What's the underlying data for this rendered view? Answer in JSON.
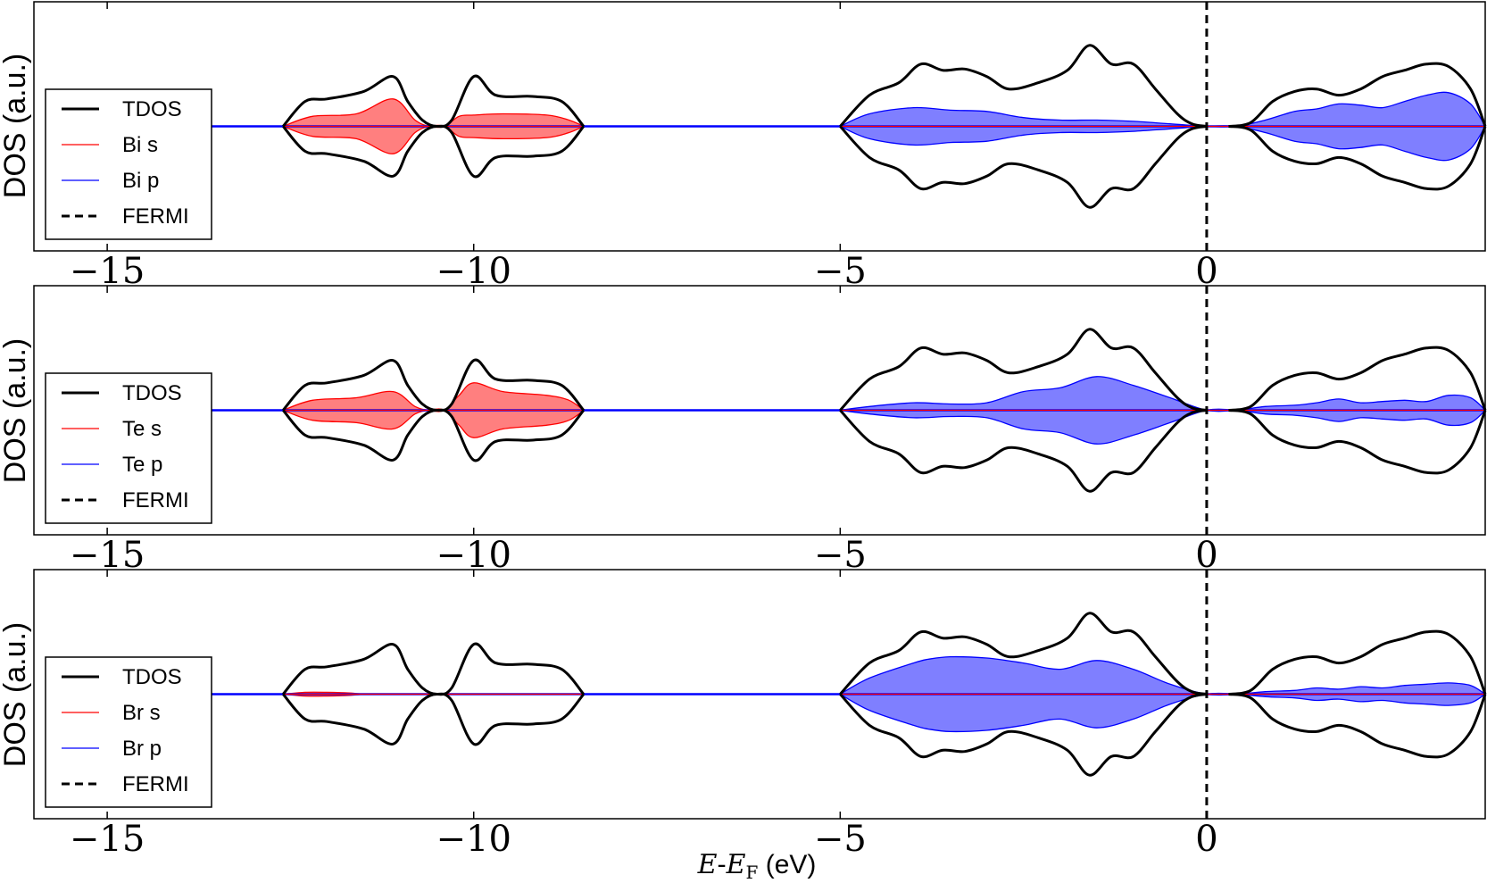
{
  "chart_data": [
    {
      "type": "area",
      "ylabel": "DOS (a.u.)",
      "xlim": [
        -16,
        3.8
      ],
      "ylim": [
        -1.0,
        1.0
      ],
      "xticks": [
        -15,
        -10,
        -5,
        0
      ],
      "xtick_labels": [
        "−15",
        "−10",
        "−5",
        "0"
      ],
      "fermi_level": 0,
      "legend": {
        "placement": "lower-left",
        "entries": [
          "TDOS",
          "Bi s",
          "Bi p",
          "FERMI"
        ]
      },
      "series": [
        {
          "name": "TDOS",
          "style": "line",
          "color": "#000000",
          "x": [
            -12.6,
            -12.3,
            -12.0,
            -11.5,
            -11.1,
            -10.9,
            -10.7,
            -10.5,
            -10.3,
            -10.0,
            -9.7,
            -9.2,
            -8.8,
            -8.5,
            -5.0,
            -4.6,
            -4.2,
            -3.9,
            -3.6,
            -3.3,
            -3.0,
            -2.7,
            -2.3,
            -1.9,
            -1.6,
            -1.3,
            -1.0,
            -0.7,
            -0.4,
            -0.2,
            0.0,
            0.3,
            0.6,
            0.9,
            1.2,
            1.5,
            1.8,
            2.1,
            2.4,
            2.7,
            3.0,
            3.3,
            3.6,
            3.8
          ],
          "y": [
            0.0,
            0.2,
            0.22,
            0.28,
            0.4,
            0.2,
            0.05,
            0.0,
            0.05,
            0.4,
            0.25,
            0.24,
            0.2,
            0.0,
            0.0,
            0.25,
            0.35,
            0.5,
            0.45,
            0.46,
            0.4,
            0.3,
            0.35,
            0.45,
            0.65,
            0.5,
            0.5,
            0.3,
            0.1,
            0.02,
            0.0,
            0.0,
            0.03,
            0.2,
            0.28,
            0.3,
            0.25,
            0.3,
            0.4,
            0.45,
            0.5,
            0.48,
            0.3,
            0.0
          ]
        },
        {
          "name": "Bi s",
          "style": "fill",
          "color": "#ff0000",
          "x": [
            -12.6,
            -12.2,
            -11.6,
            -11.1,
            -10.8,
            -10.6,
            -10.4,
            -10.2,
            -10.0,
            -9.6,
            -9.0,
            -8.7,
            -8.5
          ],
          "y": [
            0.0,
            0.08,
            0.1,
            0.22,
            0.05,
            0.0,
            0.0,
            0.08,
            0.09,
            0.1,
            0.09,
            0.05,
            0.0
          ]
        },
        {
          "name": "Bi p",
          "style": "fill",
          "color": "#0000ff",
          "x": [
            -5.0,
            -4.6,
            -4.0,
            -3.5,
            -3.0,
            -2.5,
            -2.0,
            -1.5,
            -1.0,
            -0.5,
            0.0,
            0.4,
            0.8,
            1.2,
            1.5,
            1.8,
            2.1,
            2.4,
            2.7,
            3.0,
            3.3,
            3.6,
            3.8
          ],
          "y": [
            0.0,
            0.1,
            0.15,
            0.13,
            0.12,
            0.07,
            0.05,
            0.05,
            0.04,
            0.02,
            0.0,
            0.0,
            0.05,
            0.12,
            0.14,
            0.18,
            0.17,
            0.15,
            0.2,
            0.25,
            0.27,
            0.18,
            0.0
          ]
        }
      ]
    },
    {
      "type": "area",
      "ylabel": "DOS (a.u.)",
      "xlim": [
        -16,
        3.8
      ],
      "ylim": [
        -1.0,
        1.0
      ],
      "xticks": [
        -15,
        -10,
        -5,
        0
      ],
      "xtick_labels": [
        "−15",
        "−10",
        "−5",
        "0"
      ],
      "fermi_level": 0,
      "legend": {
        "placement": "lower-left",
        "entries": [
          "TDOS",
          "Te s",
          "Te p",
          "FERMI"
        ]
      },
      "series": [
        {
          "name": "TDOS",
          "style": "line",
          "color": "#000000",
          "x": [
            -12.6,
            -12.3,
            -12.0,
            -11.5,
            -11.1,
            -10.9,
            -10.7,
            -10.5,
            -10.3,
            -10.0,
            -9.7,
            -9.2,
            -8.8,
            -8.5,
            -5.0,
            -4.6,
            -4.2,
            -3.9,
            -3.6,
            -3.3,
            -3.0,
            -2.7,
            -2.3,
            -1.9,
            -1.6,
            -1.3,
            -1.0,
            -0.7,
            -0.4,
            -0.2,
            0.0,
            0.3,
            0.6,
            0.9,
            1.2,
            1.5,
            1.8,
            2.1,
            2.4,
            2.7,
            3.0,
            3.3,
            3.6,
            3.8
          ],
          "y": [
            0.0,
            0.2,
            0.22,
            0.28,
            0.4,
            0.2,
            0.05,
            0.0,
            0.05,
            0.4,
            0.25,
            0.24,
            0.2,
            0.0,
            0.0,
            0.25,
            0.35,
            0.5,
            0.45,
            0.46,
            0.4,
            0.3,
            0.35,
            0.45,
            0.65,
            0.5,
            0.5,
            0.3,
            0.1,
            0.02,
            0.0,
            0.0,
            0.03,
            0.2,
            0.28,
            0.3,
            0.25,
            0.3,
            0.4,
            0.45,
            0.5,
            0.48,
            0.3,
            0.0
          ]
        },
        {
          "name": "Te s",
          "style": "fill",
          "color": "#ff0000",
          "x": [
            -12.6,
            -12.2,
            -11.6,
            -11.1,
            -10.8,
            -10.6,
            -10.4,
            -10.2,
            -10.0,
            -9.6,
            -9.0,
            -8.7,
            -8.5
          ],
          "y": [
            0.0,
            0.08,
            0.1,
            0.15,
            0.03,
            0.0,
            0.0,
            0.12,
            0.22,
            0.15,
            0.12,
            0.08,
            0.0
          ]
        },
        {
          "name": "Te p",
          "style": "fill",
          "color": "#0000ff",
          "x": [
            -5.0,
            -4.6,
            -4.0,
            -3.5,
            -3.0,
            -2.5,
            -2.0,
            -1.5,
            -1.0,
            -0.5,
            0.0,
            0.4,
            0.8,
            1.2,
            1.5,
            1.8,
            2.1,
            2.4,
            2.7,
            3.0,
            3.3,
            3.6,
            3.8
          ],
          "y": [
            0.0,
            0.03,
            0.06,
            0.05,
            0.06,
            0.15,
            0.18,
            0.27,
            0.2,
            0.1,
            0.0,
            0.0,
            0.03,
            0.04,
            0.06,
            0.09,
            0.06,
            0.07,
            0.08,
            0.07,
            0.12,
            0.1,
            0.0
          ]
        }
      ]
    },
    {
      "type": "area",
      "ylabel": "DOS (a.u.)",
      "xlabel": "E-E_F (eV)",
      "xlim": [
        -16,
        3.8
      ],
      "ylim": [
        -1.0,
        1.0
      ],
      "xticks": [
        -15,
        -10,
        -5,
        0
      ],
      "xtick_labels": [
        "−15",
        "−10",
        "−5",
        "0"
      ],
      "fermi_level": 0,
      "legend": {
        "placement": "lower-left",
        "entries": [
          "TDOS",
          "Br s",
          "Br p",
          "FERMI"
        ]
      },
      "series": [
        {
          "name": "TDOS",
          "style": "line",
          "color": "#000000",
          "x": [
            -12.6,
            -12.3,
            -12.0,
            -11.5,
            -11.1,
            -10.9,
            -10.7,
            -10.5,
            -10.3,
            -10.0,
            -9.7,
            -9.2,
            -8.8,
            -8.5,
            -5.0,
            -4.6,
            -4.2,
            -3.9,
            -3.6,
            -3.3,
            -3.0,
            -2.7,
            -2.3,
            -1.9,
            -1.6,
            -1.3,
            -1.0,
            -0.7,
            -0.4,
            -0.2,
            0.0,
            0.3,
            0.6,
            0.9,
            1.2,
            1.5,
            1.8,
            2.1,
            2.4,
            2.7,
            3.0,
            3.3,
            3.6,
            3.8
          ],
          "y": [
            0.0,
            0.2,
            0.22,
            0.28,
            0.4,
            0.2,
            0.05,
            0.0,
            0.05,
            0.4,
            0.25,
            0.24,
            0.2,
            0.0,
            0.0,
            0.25,
            0.35,
            0.5,
            0.45,
            0.46,
            0.4,
            0.3,
            0.35,
            0.45,
            0.65,
            0.5,
            0.5,
            0.3,
            0.1,
            0.02,
            0.0,
            0.0,
            0.03,
            0.2,
            0.28,
            0.3,
            0.25,
            0.3,
            0.4,
            0.45,
            0.5,
            0.48,
            0.3,
            0.0
          ]
        },
        {
          "name": "Br s",
          "style": "fill",
          "color": "#ff0000",
          "x": [
            -12.6,
            -12.3,
            -12.0,
            -11.7,
            -11.5
          ],
          "y": [
            0.0,
            0.015,
            0.015,
            0.01,
            0.0
          ]
        },
        {
          "name": "Br p",
          "style": "fill",
          "color": "#0000ff",
          "x": [
            -5.0,
            -4.6,
            -4.0,
            -3.8,
            -3.5,
            -3.0,
            -2.5,
            -2.0,
            -1.5,
            -1.0,
            -0.5,
            0.0,
            0.4,
            0.8,
            1.2,
            1.5,
            1.8,
            2.1,
            2.4,
            2.7,
            3.0,
            3.3,
            3.6,
            3.8
          ],
          "y": [
            0.0,
            0.13,
            0.25,
            0.28,
            0.3,
            0.29,
            0.25,
            0.2,
            0.27,
            0.2,
            0.08,
            0.0,
            0.0,
            0.02,
            0.03,
            0.05,
            0.04,
            0.06,
            0.05,
            0.07,
            0.08,
            0.09,
            0.07,
            0.0
          ]
        }
      ]
    }
  ]
}
